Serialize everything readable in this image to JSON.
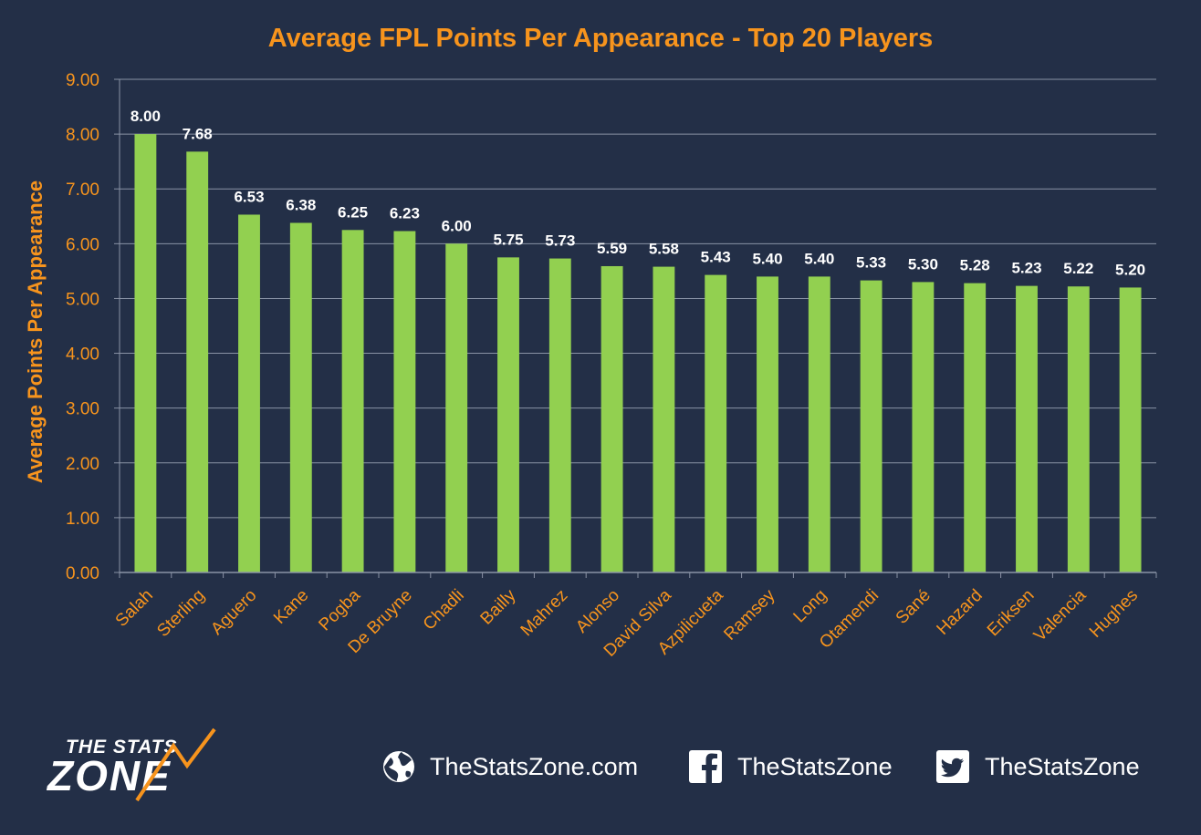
{
  "colors": {
    "background": "#232f47",
    "accent": "#f7941d",
    "bar": "#92d050",
    "grid": "#8a93a6",
    "white": "#ffffff"
  },
  "chart_data": {
    "type": "bar",
    "title": "Average FPL Points Per Appearance - Top 20 Players",
    "xlabel": "",
    "ylabel": "Average Points Per Appearance",
    "ylim": [
      0,
      9
    ],
    "yticks": [
      "0.00",
      "1.00",
      "2.00",
      "3.00",
      "4.00",
      "5.00",
      "6.00",
      "7.00",
      "8.00",
      "9.00"
    ],
    "grid": true,
    "categories": [
      "Salah",
      "Sterling",
      "Aguero",
      "Kane",
      "Pogba",
      "De Bruyne",
      "Chadli",
      "Bailly",
      "Mahrez",
      "Alonso",
      "David Silva",
      "Azpilicueta",
      "Ramsey",
      "Long",
      "Otamendi",
      "Sané",
      "Hazard",
      "Eriksen",
      "Valencia",
      "Hughes"
    ],
    "values": [
      8.0,
      7.68,
      6.53,
      6.38,
      6.25,
      6.23,
      6.0,
      5.75,
      5.73,
      5.59,
      5.58,
      5.43,
      5.4,
      5.4,
      5.33,
      5.3,
      5.28,
      5.23,
      5.22,
      5.2
    ],
    "value_labels": [
      "8.00",
      "7.68",
      "6.53",
      "6.38",
      "6.25",
      "6.23",
      "6.00",
      "5.75",
      "5.73",
      "5.59",
      "5.58",
      "5.43",
      "5.40",
      "5.40",
      "5.33",
      "5.30",
      "5.28",
      "5.23",
      "5.22",
      "5.20"
    ]
  },
  "footer": {
    "logo_line1": "THE STATS",
    "logo_line2": "ZONE",
    "website_icon": "globe-icon",
    "website": "TheStatsZone.com",
    "facebook_icon": "facebook-icon",
    "facebook": "TheStatsZone",
    "twitter_icon": "twitter-icon",
    "twitter": "TheStatsZone"
  }
}
